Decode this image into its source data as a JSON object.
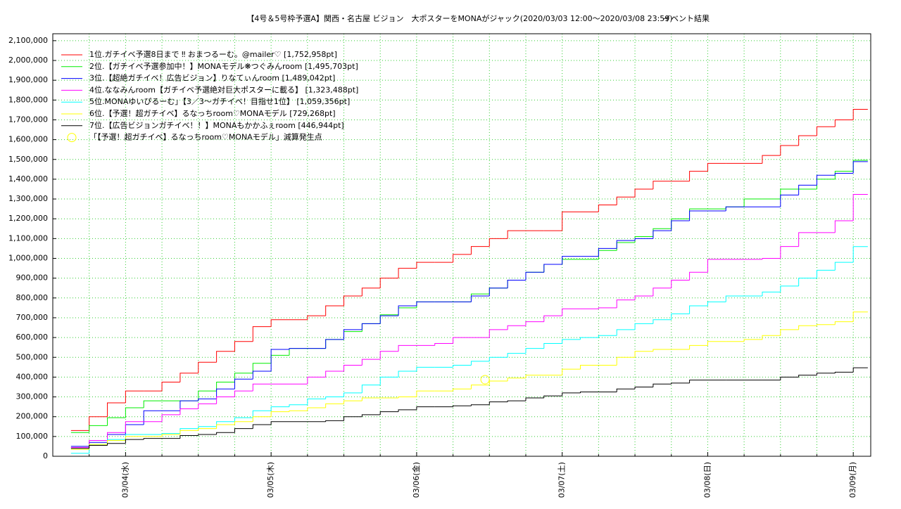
{
  "chart_data": {
    "type": "line",
    "drawstyle": "steps-post",
    "title": "【4号＆5号枠予選A】関西・名古屋 ビジョン　大ポスターをMONAがジャック(2020/03/03 12:00〜2020/03/08 23:59)",
    "subtitle": "イベント結果",
    "x": [
      3.625,
      3.75,
      3.875,
      4.0,
      4.125,
      4.25,
      4.375,
      4.5,
      4.625,
      4.75,
      4.875,
      5.0,
      5.125,
      5.25,
      5.375,
      5.5,
      5.625,
      5.75,
      5.875,
      6.0,
      6.125,
      6.25,
      6.375,
      6.5,
      6.625,
      6.75,
      6.875,
      7.0,
      7.125,
      7.25,
      7.375,
      7.5,
      7.625,
      7.75,
      7.875,
      8.0,
      8.125,
      8.25,
      8.375,
      8.5,
      8.625,
      8.75,
      8.875,
      9.0,
      9.1
    ],
    "xlim": [
      3.5,
      9.12
    ],
    "xticks": [
      {
        "value": 4,
        "label": "03/04(水)"
      },
      {
        "value": 5,
        "label": "03/05(木)"
      },
      {
        "value": 6,
        "label": "03/06(金)"
      },
      {
        "value": 7,
        "label": "03/07(土)"
      },
      {
        "value": 8,
        "label": "03/08(日)"
      },
      {
        "value": 9,
        "label": "03/09(月)"
      }
    ],
    "x_minor_ticks": [
      3.75,
      4.25,
      4.5,
      4.75,
      5.25,
      5.5,
      5.75,
      6.25,
      6.5,
      6.75,
      7.25,
      7.5,
      7.75,
      8.25,
      8.5,
      8.75
    ],
    "ylim": [
      0,
      2135000
    ],
    "yticks": [
      0,
      {
        "value": 100000,
        "label": "100,000"
      },
      {
        "value": 200000,
        "label": "200,000"
      },
      {
        "value": 300000,
        "label": "300,000"
      },
      {
        "value": 400000,
        "label": "400,000"
      },
      {
        "value": 500000,
        "label": "500,000"
      },
      {
        "value": 600000,
        "label": "600,000"
      },
      {
        "value": 700000,
        "label": "700,000"
      },
      {
        "value": 800000,
        "label": "800,000"
      },
      {
        "value": 900000,
        "label": "900,000"
      },
      {
        "value": 1000000,
        "label": "1,000,000"
      },
      {
        "value": 1100000,
        "label": "1,100,000"
      },
      {
        "value": 1200000,
        "label": "1,200,000"
      },
      {
        "value": 1300000,
        "label": "1,300,000"
      },
      {
        "value": 1400000,
        "label": "1,400,000"
      },
      {
        "value": 1500000,
        "label": "1,500,000"
      },
      {
        "value": 1600000,
        "label": "1,600,000"
      },
      {
        "value": 1700000,
        "label": "1,700,000"
      },
      {
        "value": 1800000,
        "label": "1,800,000"
      },
      {
        "value": 1900000,
        "label": "1,900,000"
      },
      {
        "value": 2000000,
        "label": "2,000,000"
      },
      {
        "value": 2100000,
        "label": "2,100,000"
      }
    ],
    "grid": true,
    "grid_color": "#33cc33",
    "legend": "upper left",
    "series": [
      {
        "name": "1位.ガチイベ予選8日まで ‼ おまつるーむ。@mailer♡ [1,752,958pt]",
        "color": "#ff0000",
        "values": [
          130000,
          200000,
          270000,
          330000,
          330000,
          375000,
          420000,
          475000,
          530000,
          580000,
          655000,
          690000,
          690000,
          710000,
          760000,
          810000,
          850000,
          900000,
          950000,
          980000,
          980000,
          1020000,
          1060000,
          1100000,
          1140000,
          1140000,
          1140000,
          1235000,
          1235000,
          1270000,
          1310000,
          1350000,
          1390000,
          1390000,
          1440000,
          1480000,
          1480000,
          1480000,
          1520000,
          1570000,
          1620000,
          1665000,
          1700000,
          1752958,
          1752958
        ]
      },
      {
        "name": "2位.【ガチイベ予選参加中！】MONAモデル❋つぐみんroom [1,495,703pt]",
        "color": "#00ee00",
        "values": [
          120000,
          155000,
          195000,
          245000,
          280000,
          280000,
          280000,
          330000,
          375000,
          420000,
          470000,
          510000,
          545000,
          545000,
          590000,
          630000,
          670000,
          715000,
          750000,
          780000,
          780000,
          780000,
          820000,
          850000,
          890000,
          930000,
          970000,
          995000,
          995000,
          1040000,
          1080000,
          1110000,
          1150000,
          1200000,
          1250000,
          1250000,
          1260000,
          1300000,
          1300000,
          1350000,
          1350000,
          1400000,
          1440000,
          1495703,
          1495703
        ]
      },
      {
        "name": "3位.【超絶ガチイベ！広告ビジョン】りなてぃんroom [1,489,042pt]",
        "color": "#0000ff",
        "values": [
          50000,
          70000,
          110000,
          160000,
          230000,
          230000,
          280000,
          290000,
          340000,
          390000,
          430000,
          540000,
          545000,
          545000,
          590000,
          640000,
          670000,
          710000,
          760000,
          780000,
          780000,
          780000,
          810000,
          850000,
          890000,
          930000,
          970000,
          1010000,
          1010000,
          1050000,
          1090000,
          1100000,
          1140000,
          1190000,
          1240000,
          1240000,
          1260000,
          1260000,
          1260000,
          1320000,
          1370000,
          1420000,
          1430000,
          1489042,
          1489042
        ]
      },
      {
        "name": "4位.ななみんroom【ガチイベ予選絶対巨大ポスターに載る】 [1,323,488pt]",
        "color": "#ff00ff",
        "values": [
          45000,
          80000,
          120000,
          175000,
          175000,
          210000,
          240000,
          265000,
          300000,
          330000,
          365000,
          365000,
          365000,
          400000,
          430000,
          460000,
          490000,
          530000,
          560000,
          560000,
          570000,
          600000,
          600000,
          640000,
          660000,
          680000,
          710000,
          745000,
          745000,
          750000,
          790000,
          810000,
          850000,
          890000,
          930000,
          995000,
          995000,
          995000,
          1000000,
          1060000,
          1130000,
          1130000,
          1190000,
          1323488,
          1323488
        ]
      },
      {
        "name": "5位.MONAゆいぴるーむ」【3／3〜ガチイベ！目指せ1位】 [1,059,356pt]",
        "color": "#00ffff",
        "values": [
          15000,
          60000,
          85000,
          110000,
          110000,
          115000,
          140000,
          150000,
          175000,
          195000,
          230000,
          250000,
          260000,
          290000,
          300000,
          320000,
          360000,
          400000,
          430000,
          450000,
          450000,
          460000,
          480000,
          500000,
          520000,
          545000,
          570000,
          590000,
          600000,
          610000,
          640000,
          670000,
          690000,
          720000,
          760000,
          780000,
          810000,
          810000,
          830000,
          860000,
          900000,
          940000,
          980000,
          1059356,
          1059356
        ]
      },
      {
        "name": "6位.【予選！超ガチイベ】るなっちroom♡MONAモデル [729,268pt]",
        "color": "#ffff00",
        "values": [
          35000,
          60000,
          80000,
          100000,
          100000,
          110000,
          130000,
          140000,
          160000,
          175000,
          200000,
          225000,
          230000,
          245000,
          265000,
          280000,
          295000,
          295000,
          300000,
          330000,
          330000,
          340000,
          360000,
          380000,
          395000,
          410000,
          410000,
          440000,
          460000,
          460000,
          500000,
          530000,
          540000,
          540000,
          560000,
          580000,
          580000,
          590000,
          610000,
          640000,
          660000,
          665000,
          680000,
          729268,
          729268
        ]
      },
      {
        "name": "7位.【広告ビジョンガチイベ！！】MONAもかかふぇroom [446,944pt]",
        "color": "#000000",
        "values": [
          40000,
          55000,
          65000,
          85000,
          90000,
          90000,
          105000,
          110000,
          120000,
          140000,
          160000,
          175000,
          175000,
          175000,
          180000,
          200000,
          210000,
          225000,
          235000,
          250000,
          250000,
          255000,
          260000,
          275000,
          280000,
          295000,
          305000,
          320000,
          325000,
          325000,
          340000,
          350000,
          365000,
          370000,
          385000,
          385000,
          385000,
          385000,
          385000,
          400000,
          410000,
          420000,
          425000,
          446944,
          446944
        ]
      },
      {
        "name": "「【予選！超ガチイベ】るなっちroom♡MONAモデル」減算発生点",
        "color": "#ffff00",
        "marker": "open-circle",
        "x": [
          6.47
        ],
        "values": [
          387000
        ]
      }
    ]
  }
}
